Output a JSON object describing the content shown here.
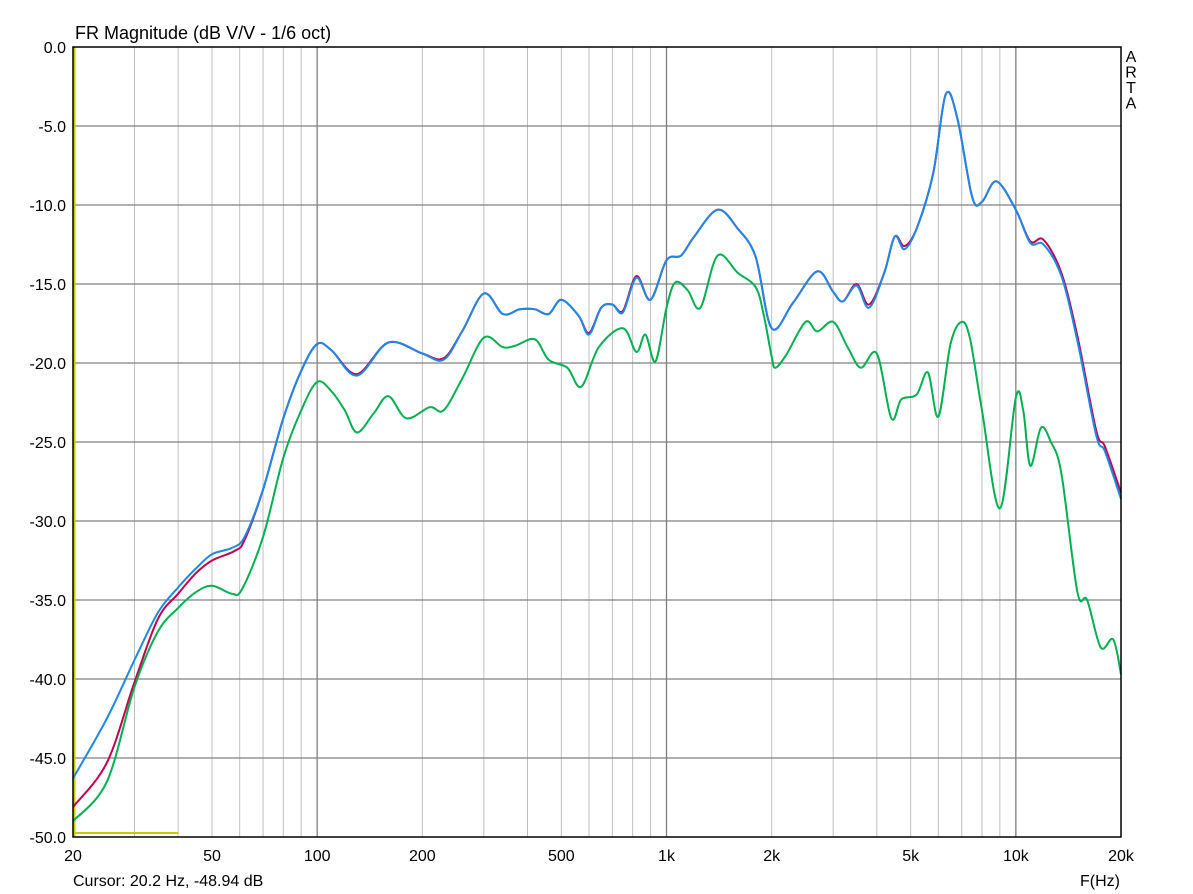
{
  "chart_data": {
    "type": "line",
    "title": "FR Magnitude (dB V/V - 1/6 oct)",
    "xlabel": "F(Hz)",
    "ylabel": "",
    "x_scale": "log",
    "xlim": [
      20,
      20000
    ],
    "ylim": [
      -50,
      0
    ],
    "grid": true,
    "x_ticks": [
      20,
      50,
      100,
      200,
      500,
      1000,
      2000,
      5000,
      10000,
      20000
    ],
    "x_tick_labels": [
      "20",
      "50",
      "100",
      "200",
      "500",
      "1k",
      "2k",
      "5k",
      "10k",
      "20k"
    ],
    "y_ticks": [
      0,
      -5,
      -10,
      -15,
      -20,
      -25,
      -30,
      -35,
      -40,
      -45,
      -50
    ],
    "y_tick_labels": [
      "0.0",
      "-5.0",
      "-10.0",
      "-15.0",
      "-20.0",
      "-25.0",
      "-30.0",
      "-35.0",
      "-40.0",
      "-45.0",
      "-50.0"
    ],
    "watermark": "ARTA",
    "cursor": {
      "text": "Cursor: 20.2 Hz, -48.94 dB",
      "freq": 20.2,
      "db": -48.94,
      "color": "#c8c800"
    },
    "series": [
      {
        "color": "#c0004f",
        "points": [
          [
            20,
            -48.1
          ],
          [
            25,
            -45.3
          ],
          [
            30,
            -40.2
          ],
          [
            35,
            -36.2
          ],
          [
            40,
            -34.6
          ],
          [
            45,
            -33.3
          ],
          [
            50,
            -32.5
          ],
          [
            58,
            -31.9
          ],
          [
            62,
            -31.2
          ],
          [
            70,
            -28
          ],
          [
            80,
            -23.5
          ],
          [
            90,
            -20.5
          ],
          [
            100,
            -18.8
          ],
          [
            110,
            -19.2
          ],
          [
            130,
            -20.7
          ],
          [
            160,
            -18.7
          ],
          [
            200,
            -19.4
          ],
          [
            230,
            -19.7
          ],
          [
            260,
            -18.0
          ],
          [
            300,
            -15.6
          ],
          [
            340,
            -16.9
          ],
          [
            380,
            -16.6
          ],
          [
            420,
            -16.6
          ],
          [
            460,
            -16.9
          ],
          [
            500,
            -16.0
          ],
          [
            560,
            -17.0
          ],
          [
            600,
            -18.1
          ],
          [
            650,
            -16.5
          ],
          [
            700,
            -16.3
          ],
          [
            750,
            -16.7
          ],
          [
            820,
            -14.5
          ],
          [
            900,
            -16.0
          ],
          [
            1000,
            -13.5
          ],
          [
            1100,
            -13.2
          ],
          [
            1200,
            -12.0
          ],
          [
            1400,
            -10.3
          ],
          [
            1600,
            -11.5
          ],
          [
            1800,
            -13.3
          ],
          [
            2000,
            -17.8
          ],
          [
            2300,
            -16.2
          ],
          [
            2700,
            -14.2
          ],
          [
            3000,
            -15.5
          ],
          [
            3200,
            -16.1
          ],
          [
            3500,
            -15.0
          ],
          [
            3800,
            -16.3
          ],
          [
            4200,
            -14.3
          ],
          [
            4500,
            -12.0
          ],
          [
            4800,
            -12.6
          ],
          [
            5200,
            -11.5
          ],
          [
            5800,
            -8.0
          ],
          [
            6300,
            -3.0
          ],
          [
            6800,
            -4.5
          ],
          [
            7500,
            -9.5
          ],
          [
            8000,
            -9.8
          ],
          [
            8800,
            -8.5
          ],
          [
            10000,
            -10.3
          ],
          [
            11000,
            -12.3
          ],
          [
            12000,
            -12.2
          ],
          [
            13500,
            -14.3
          ],
          [
            15000,
            -18.3
          ],
          [
            17000,
            -24.3
          ],
          [
            18000,
            -25.3
          ],
          [
            20000,
            -28.2
          ]
        ]
      },
      {
        "color": "#1e88e5",
        "points": [
          [
            20,
            -46.3
          ],
          [
            25,
            -42.5
          ],
          [
            30,
            -38.8
          ],
          [
            35,
            -35.8
          ],
          [
            40,
            -34.2
          ],
          [
            45,
            -33.0
          ],
          [
            50,
            -32.1
          ],
          [
            57,
            -31.7
          ],
          [
            62,
            -31.0
          ],
          [
            70,
            -28
          ],
          [
            80,
            -23.5
          ],
          [
            90,
            -20.5
          ],
          [
            100,
            -18.8
          ],
          [
            110,
            -19.2
          ],
          [
            130,
            -20.8
          ],
          [
            160,
            -18.7
          ],
          [
            200,
            -19.4
          ],
          [
            230,
            -19.8
          ],
          [
            260,
            -18.0
          ],
          [
            300,
            -15.6
          ],
          [
            340,
            -16.9
          ],
          [
            380,
            -16.6
          ],
          [
            420,
            -16.6
          ],
          [
            460,
            -16.9
          ],
          [
            500,
            -16.0
          ],
          [
            560,
            -17.0
          ],
          [
            600,
            -18.2
          ],
          [
            650,
            -16.5
          ],
          [
            700,
            -16.3
          ],
          [
            750,
            -16.8
          ],
          [
            820,
            -14.6
          ],
          [
            900,
            -16.0
          ],
          [
            1000,
            -13.5
          ],
          [
            1100,
            -13.2
          ],
          [
            1200,
            -12.0
          ],
          [
            1400,
            -10.3
          ],
          [
            1600,
            -11.5
          ],
          [
            1800,
            -13.3
          ],
          [
            2000,
            -17.8
          ],
          [
            2300,
            -16.2
          ],
          [
            2700,
            -14.2
          ],
          [
            3000,
            -15.5
          ],
          [
            3200,
            -16.1
          ],
          [
            3500,
            -15.1
          ],
          [
            3800,
            -16.5
          ],
          [
            4200,
            -14.3
          ],
          [
            4500,
            -12.0
          ],
          [
            4800,
            -12.8
          ],
          [
            5200,
            -11.5
          ],
          [
            5800,
            -8.0
          ],
          [
            6300,
            -3.0
          ],
          [
            6800,
            -4.5
          ],
          [
            7500,
            -9.5
          ],
          [
            8000,
            -9.8
          ],
          [
            8800,
            -8.5
          ],
          [
            10000,
            -10.3
          ],
          [
            11000,
            -12.4
          ],
          [
            12000,
            -12.5
          ],
          [
            13500,
            -14.5
          ],
          [
            15000,
            -18.6
          ],
          [
            17000,
            -24.6
          ],
          [
            18000,
            -25.6
          ],
          [
            20000,
            -28.6
          ]
        ]
      },
      {
        "color": "#00b050",
        "points": [
          [
            20,
            -49.0
          ],
          [
            25,
            -46.5
          ],
          [
            30,
            -40.5
          ],
          [
            35,
            -37.0
          ],
          [
            40,
            -35.5
          ],
          [
            45,
            -34.5
          ],
          [
            50,
            -34.1
          ],
          [
            57,
            -34.6
          ],
          [
            61,
            -34.3
          ],
          [
            70,
            -31
          ],
          [
            80,
            -26
          ],
          [
            90,
            -23
          ],
          [
            100,
            -21.2
          ],
          [
            110,
            -21.8
          ],
          [
            120,
            -23
          ],
          [
            130,
            -24.4
          ],
          [
            145,
            -23.2
          ],
          [
            160,
            -22.1
          ],
          [
            180,
            -23.5
          ],
          [
            210,
            -22.8
          ],
          [
            230,
            -23.0
          ],
          [
            260,
            -21
          ],
          [
            300,
            -18.4
          ],
          [
            340,
            -19.0
          ],
          [
            370,
            -18.9
          ],
          [
            420,
            -18.5
          ],
          [
            460,
            -19.8
          ],
          [
            520,
            -20.3
          ],
          [
            570,
            -21.5
          ],
          [
            640,
            -19
          ],
          [
            750,
            -17.8
          ],
          [
            820,
            -19.3
          ],
          [
            870,
            -18.2
          ],
          [
            930,
            -19.9
          ],
          [
            1000,
            -16.5
          ],
          [
            1060,
            -14.9
          ],
          [
            1150,
            -15.4
          ],
          [
            1250,
            -16.5
          ],
          [
            1400,
            -13.2
          ],
          [
            1600,
            -14.3
          ],
          [
            1800,
            -15.2
          ],
          [
            1900,
            -17.0
          ],
          [
            2000,
            -19.6
          ],
          [
            2050,
            -20.3
          ],
          [
            2200,
            -19.5
          ],
          [
            2500,
            -17.4
          ],
          [
            2700,
            -18.0
          ],
          [
            3000,
            -17.4
          ],
          [
            3300,
            -19.0
          ],
          [
            3600,
            -20.3
          ],
          [
            4000,
            -19.4
          ],
          [
            4400,
            -23.5
          ],
          [
            4700,
            -22.3
          ],
          [
            5200,
            -22.0
          ],
          [
            5600,
            -20.6
          ],
          [
            6000,
            -23.4
          ],
          [
            6500,
            -18.8
          ],
          [
            7000,
            -17.4
          ],
          [
            7400,
            -18.5
          ],
          [
            8000,
            -23
          ],
          [
            9000,
            -29.2
          ],
          [
            10000,
            -22.2
          ],
          [
            10500,
            -23
          ],
          [
            11000,
            -26.5
          ],
          [
            11800,
            -24.1
          ],
          [
            12600,
            -25
          ],
          [
            13500,
            -27
          ],
          [
            15000,
            -34.5
          ],
          [
            16000,
            -35
          ],
          [
            17500,
            -38
          ],
          [
            19000,
            -37.5
          ],
          [
            20000,
            -39.7
          ]
        ]
      }
    ]
  }
}
